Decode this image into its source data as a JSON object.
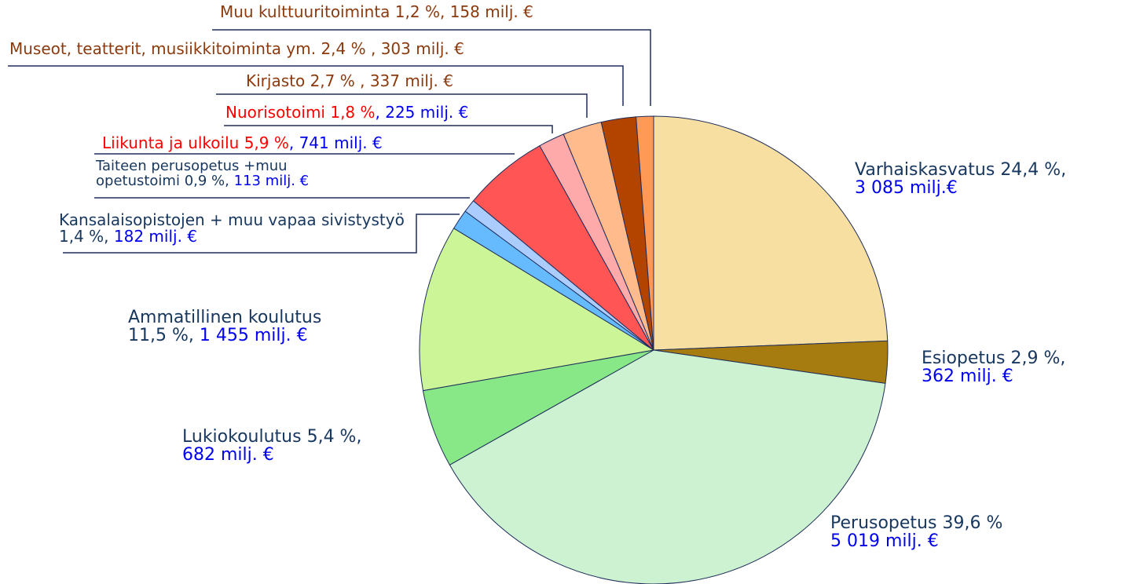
{
  "chart_data": {
    "type": "pie",
    "categories": [
      "Varhaiskasvatus",
      "Esiopetus",
      "Perusopetus",
      "Lukiokoulutus",
      "Ammatillinen koulutus",
      "Kansalaisopistojen + muu vapaa sivistystyö",
      "Taiteen perusopetus +muu opetustoimi",
      "Liikunta ja ulkoilu",
      "Nuorisotoimi",
      "Kirjasto",
      "Museot, teatterit, musiikkitoiminta ym.",
      "Muu kulttuuritoiminta"
    ],
    "values": [
      24.4,
      2.9,
      39.6,
      5.4,
      11.5,
      1.4,
      0.9,
      5.9,
      1.8,
      2.7,
      2.4,
      1.2
    ],
    "value_labels": [
      "24,4 %,",
      "2,9 %,",
      "39,6 %",
      "5,4 %,",
      "11,5 %,",
      "1,4 %,",
      "0,9 %,",
      "5,9 %",
      "1,8 %",
      "2,7 % ,",
      "2,4 % ,",
      "1,2 %,"
    ],
    "amounts": [
      3085,
      362,
      5019,
      682,
      1455,
      182,
      113,
      741,
      225,
      337,
      303,
      158
    ],
    "amount_labels": [
      "3 085 milj.€",
      "362 milj. €",
      "5 019 milj. €",
      "682 milj. €",
      "1 455 milj. €",
      "182 milj. €",
      "113 milj. €",
      ", 741 milj. €",
      ", 225 milj. €",
      "337 milj. €",
      "303 milj. €",
      "158 milj. €"
    ],
    "colors": [
      "#f6dfa0",
      "#a67c10",
      "#ccf2d2",
      "#88e888",
      "#ccf597",
      "#66bbff",
      "#aaccff",
      "#ff5555",
      "#ffaaaa",
      "#ffbb8c",
      "#b34400",
      "#ff9955"
    ],
    "label_colors": [
      "#17375e",
      "#17375e",
      "#17375e",
      "#17375e",
      "#17375e",
      "#17375e",
      "#17375e",
      "#ff0000",
      "#ff0000",
      "#8b3a0e",
      "#8b3a0e",
      "#8b3a0e"
    ],
    "amount_colors": [
      "#0000ee",
      "#0000ee",
      "#0000ee",
      "#0000ee",
      "#0000ee",
      "#0000ee",
      "#0000ee",
      "#0000ee",
      "#0000ee",
      "#8b3a0e",
      "#8b3a0e",
      "#8b3a0e"
    ]
  }
}
